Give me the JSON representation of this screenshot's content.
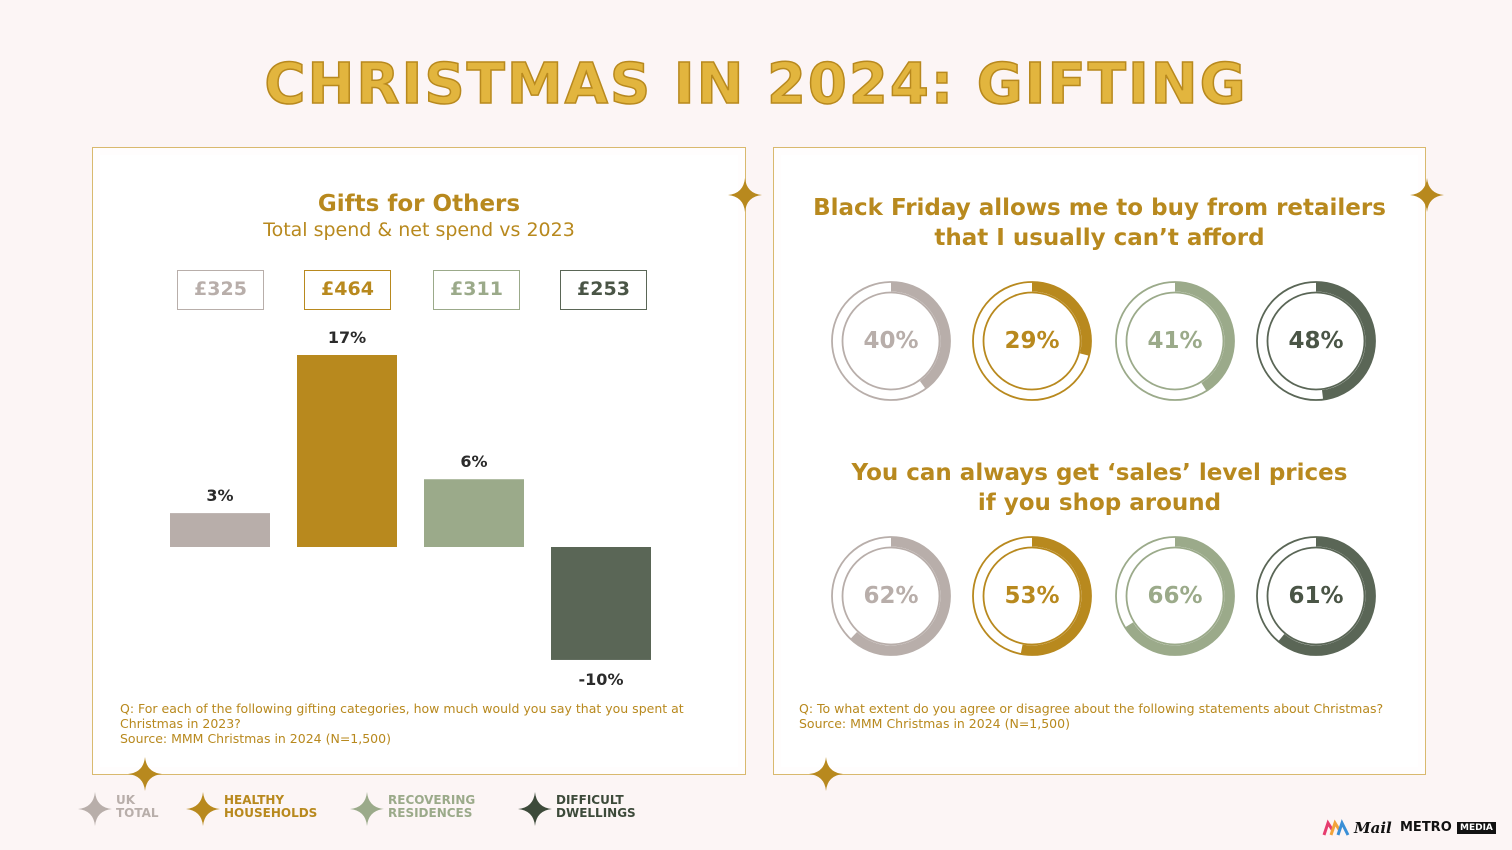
{
  "title": "CHRISTMAS IN 2024: GIFTING",
  "colors": {
    "uk_total": "#b8aeaa",
    "healthy": "#b8891e",
    "recovering": "#9baa8a",
    "difficult": "#5a6656",
    "gold_text": "#b8891e"
  },
  "left_panel": {
    "title": "Gifts for Others",
    "subtitle": "Total spend & net spend vs 2023",
    "footnote_q": "Q: For each of the following gifting categories, how much would you say that you spent at Christmas in 2023?",
    "footnote_source": "Source: MMM Christmas in 2024 (N=1,500)"
  },
  "chart_data": [
    {
      "type": "bar",
      "title": "Gifts for Others",
      "subtitle": "Total spend & net spend vs 2023",
      "categories": [
        "UK Total",
        "Healthy Households",
        "Recovering Residences",
        "Difficult Dwellings"
      ],
      "spend": [
        "£325",
        "£464",
        "£311",
        "£253"
      ],
      "values": [
        3,
        17,
        6,
        -10
      ],
      "value_labels": [
        "3%",
        "17%",
        "6%",
        "-10%"
      ],
      "ylim": [
        -10,
        17
      ],
      "grid": false
    },
    {
      "type": "pie",
      "title": "Black Friday allows me to buy from retailers that I usually can’t afford",
      "categories": [
        "UK Total",
        "Healthy Households",
        "Recovering Residences",
        "Difficult Dwellings"
      ],
      "values": [
        40,
        29,
        41,
        48
      ],
      "value_labels": [
        "40%",
        "29%",
        "41%",
        "48%"
      ]
    },
    {
      "type": "pie",
      "title": "You can always get ‘sales’ level prices if you shop around",
      "categories": [
        "UK Total",
        "Healthy Households",
        "Recovering Residences",
        "Difficult Dwellings"
      ],
      "values": [
        62,
        53,
        66,
        61
      ],
      "value_labels": [
        "62%",
        "53%",
        "66%",
        "61%"
      ]
    }
  ],
  "right_panel": {
    "q1_line1": "Black Friday allows me to buy from retailers",
    "q1_line2": "that I usually can’t afford",
    "q2_line1": "You can always get ‘sales’ level prices",
    "q2_line2": "if you shop around",
    "footnote_q": "Q: To what extent do you agree or disagree about the following statements about Christmas?",
    "footnote_source": "Source: MMM Christmas in 2024 (N=1,500)"
  },
  "legend": [
    {
      "line1": "UK",
      "line2": "TOTAL"
    },
    {
      "line1": "HEALTHY",
      "line2": "HOUSEHOLDS"
    },
    {
      "line1": "RECOVERING",
      "line2": "RESIDENCES"
    },
    {
      "line1": "DIFFICULT",
      "line2": "DWELLINGS"
    }
  ],
  "logo": {
    "mail": "Mail",
    "metro": "METRO",
    "media": "MEDIA"
  }
}
